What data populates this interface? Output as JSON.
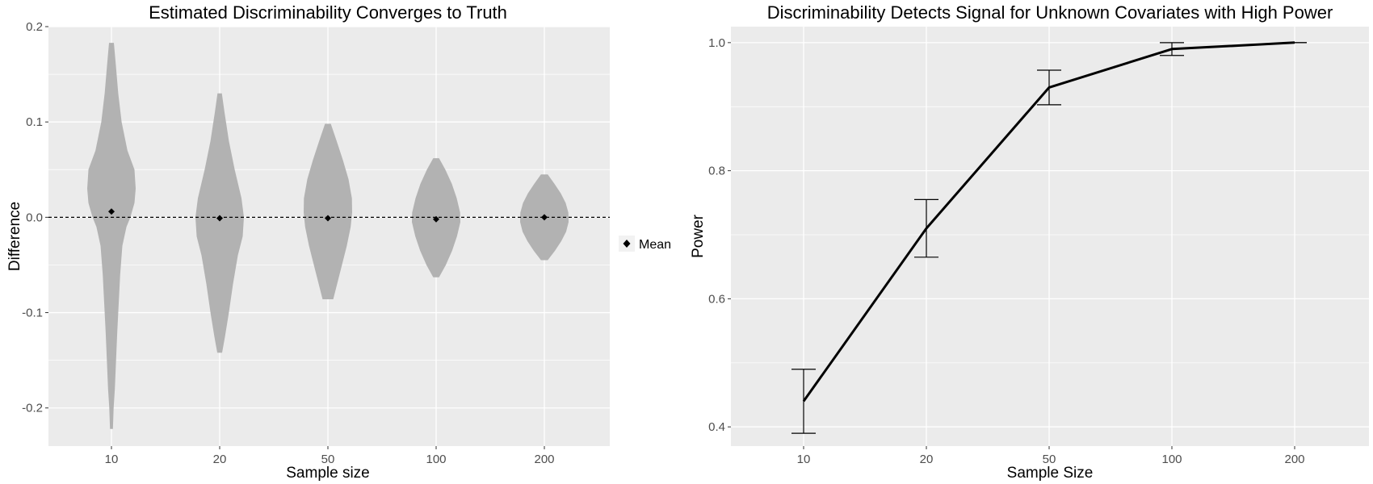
{
  "chart_data": [
    {
      "type": "violin",
      "title": "Estimated Discriminability Converges to Truth",
      "xlabel": "Sample size",
      "ylabel": "Difference",
      "categories": [
        "10",
        "20",
        "50",
        "100",
        "200"
      ],
      "yticks": [
        0.2,
        0.1,
        0.0,
        -0.1,
        -0.2
      ],
      "ytick_labels": [
        "0.2",
        "0.1",
        "0.0",
        "-0.1",
        "-0.2"
      ],
      "ylim": [
        -0.24,
        0.2
      ],
      "reference_line": {
        "y": 0,
        "style": "dashed"
      },
      "grid": true,
      "series": [
        {
          "name": "Mean",
          "marker": "diamond",
          "values": [
            0.006,
            -0.001,
            -0.001,
            -0.002,
            0.0
          ]
        }
      ],
      "violins": [
        {
          "category": "10",
          "profile": [
            [
              0.183,
              0.1
            ],
            [
              0.16,
              0.18
            ],
            [
              0.13,
              0.28
            ],
            [
              0.1,
              0.42
            ],
            [
              0.07,
              0.66
            ],
            [
              0.05,
              0.95
            ],
            [
              0.03,
              1.0
            ],
            [
              0.015,
              0.95
            ],
            [
              0.0,
              0.78
            ],
            [
              -0.01,
              0.62
            ],
            [
              -0.03,
              0.45
            ],
            [
              -0.06,
              0.36
            ],
            [
              -0.09,
              0.3
            ],
            [
              -0.12,
              0.24
            ],
            [
              -0.15,
              0.19
            ],
            [
              -0.18,
              0.14
            ],
            [
              -0.2,
              0.09
            ],
            [
              -0.222,
              0.06
            ]
          ]
        },
        {
          "category": "20",
          "profile": [
            [
              0.13,
              0.09
            ],
            [
              0.11,
              0.2
            ],
            [
              0.08,
              0.38
            ],
            [
              0.05,
              0.62
            ],
            [
              0.02,
              0.9
            ],
            [
              0.0,
              1.0
            ],
            [
              -0.02,
              0.95
            ],
            [
              -0.04,
              0.75
            ],
            [
              -0.07,
              0.55
            ],
            [
              -0.1,
              0.38
            ],
            [
              -0.125,
              0.22
            ],
            [
              -0.142,
              0.1
            ]
          ]
        },
        {
          "category": "50",
          "profile": [
            [
              0.098,
              0.12
            ],
            [
              0.08,
              0.36
            ],
            [
              0.06,
              0.62
            ],
            [
              0.04,
              0.85
            ],
            [
              0.02,
              0.99
            ],
            [
              0.005,
              1.0
            ],
            [
              -0.01,
              0.94
            ],
            [
              -0.03,
              0.78
            ],
            [
              -0.05,
              0.58
            ],
            [
              -0.07,
              0.38
            ],
            [
              -0.086,
              0.22
            ]
          ]
        },
        {
          "category": "100",
          "profile": [
            [
              0.062,
              0.12
            ],
            [
              0.05,
              0.38
            ],
            [
              0.035,
              0.65
            ],
            [
              0.02,
              0.85
            ],
            [
              0.005,
              0.99
            ],
            [
              -0.005,
              1.0
            ],
            [
              -0.02,
              0.86
            ],
            [
              -0.035,
              0.66
            ],
            [
              -0.05,
              0.4
            ],
            [
              -0.063,
              0.12
            ]
          ]
        },
        {
          "category": "200",
          "profile": [
            [
              0.045,
              0.14
            ],
            [
              0.035,
              0.42
            ],
            [
              0.025,
              0.68
            ],
            [
              0.015,
              0.88
            ],
            [
              0.005,
              0.99
            ],
            [
              -0.005,
              1.0
            ],
            [
              -0.015,
              0.9
            ],
            [
              -0.025,
              0.7
            ],
            [
              -0.035,
              0.44
            ],
            [
              -0.045,
              0.14
            ]
          ]
        }
      ],
      "legend": {
        "position": "right",
        "items": [
          "Mean"
        ]
      },
      "colors": {
        "panel_bg": "#ebebeb",
        "grid": "#ffffff",
        "violin_fill": "#b2b2b2",
        "mean_marker": "#000000"
      }
    },
    {
      "type": "line",
      "title": "Discriminability Detects Signal for Unknown Covariates with High Power",
      "xlabel": "Sample Size",
      "ylabel": "Power",
      "categories": [
        "10",
        "20",
        "50",
        "100",
        "200"
      ],
      "yticks": [
        0.4,
        0.6,
        0.8,
        1.0
      ],
      "ytick_labels": [
        "0.4",
        "0.6",
        "0.8",
        "1.0"
      ],
      "ylim": [
        0.37,
        1.025
      ],
      "grid": true,
      "series": [
        {
          "values": [
            0.44,
            0.71,
            0.93,
            0.99,
            1.0
          ],
          "error_low": [
            0.39,
            0.665,
            0.903,
            0.98,
            1.0
          ],
          "error_high": [
            0.49,
            0.755,
            0.957,
            1.0,
            1.0
          ]
        }
      ],
      "colors": {
        "panel_bg": "#ebebeb",
        "grid": "#ffffff",
        "line": "#000000"
      }
    }
  ]
}
